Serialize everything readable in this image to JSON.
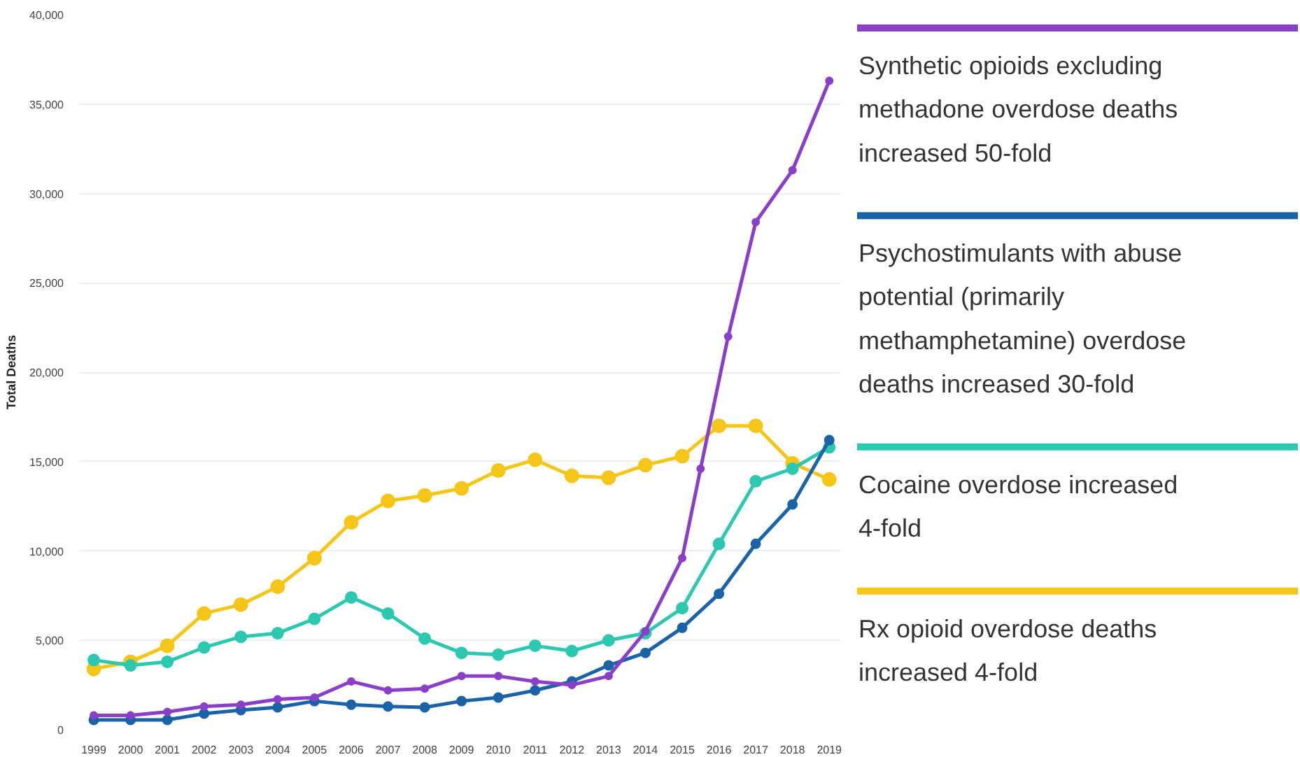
{
  "chart_data": {
    "type": "line",
    "ylabel": "Total Deaths",
    "x": [
      1999,
      2000,
      2001,
      2002,
      2003,
      2004,
      2005,
      2006,
      2007,
      2008,
      2009,
      2010,
      2011,
      2012,
      2013,
      2014,
      2015,
      2016,
      2017,
      2018,
      2019
    ],
    "xlim": [
      1998.6,
      2019.3
    ],
    "xticks": [
      1999,
      2000,
      2001,
      2002,
      2003,
      2004,
      2005,
      2006,
      2007,
      2008,
      2009,
      2010,
      2011,
      2012,
      2013,
      2014,
      2015,
      2016,
      2017,
      2018,
      2019
    ],
    "ylim": [
      0,
      40000
    ],
    "yticks": [
      0,
      {
        "value": 5000,
        "label": "5,000"
      },
      {
        "value": 10000,
        "label": "10,000"
      },
      {
        "value": 15000,
        "label": "15,000"
      },
      {
        "value": 20000,
        "label": "20,000"
      },
      {
        "value": 25000,
        "label": "25,000"
      },
      {
        "value": 30000,
        "label": "30,000"
      },
      {
        "value": 35000,
        "label": "35,000"
      },
      {
        "value": 40000,
        "label": "40,000"
      }
    ],
    "grid": "y",
    "marker": "circle",
    "line_style": "solid",
    "legend": "right",
    "series": [
      {
        "name": "Synthetic opioids excluding methadone overdose deaths increased 50-fold",
        "color": "#8a3fc8",
        "x": [
          1999,
          2000,
          2001,
          2002,
          2003,
          2004,
          2005,
          2006,
          2007,
          2008,
          2009,
          2010,
          2011,
          2012,
          2013,
          2014,
          2015,
          2015.5,
          2016.25,
          2017,
          2018,
          2019
        ],
        "values": [
          800,
          800,
          1000,
          1300,
          1400,
          1700,
          1800,
          2700,
          2200,
          2300,
          3000,
          3000,
          2700,
          2500,
          3000,
          5500,
          9600,
          14600,
          22000,
          28400,
          31300,
          36300
        ]
      },
      {
        "name": "Psychostimulants with abuse potential (primarily methamphetamine) overdose deaths increased 30-fold",
        "color": "#1a63a8",
        "values": [
          550,
          550,
          550,
          900,
          1100,
          1250,
          1600,
          1400,
          1300,
          1250,
          1600,
          1800,
          2200,
          2700,
          3600,
          4300,
          5700,
          7600,
          10400,
          12600,
          16200
        ]
      },
      {
        "name": "Cocaine overdose increased 4-fold",
        "color": "#2cc8b0",
        "values": [
          3900,
          3600,
          3800,
          4600,
          5200,
          5400,
          6200,
          7400,
          6500,
          5100,
          4300,
          4200,
          4700,
          4400,
          5000,
          5400,
          6800,
          10400,
          13900,
          14600,
          15800
        ]
      },
      {
        "name": "Rx opioid overdose deaths increased 4-fold",
        "color": "#f5c518",
        "values": [
          3400,
          3800,
          4700,
          6500,
          7000,
          8000,
          9600,
          11600,
          12800,
          13100,
          13500,
          14500,
          15100,
          14200,
          14100,
          14800,
          15300,
          17000,
          17000,
          14900,
          14000
        ]
      }
    ]
  }
}
